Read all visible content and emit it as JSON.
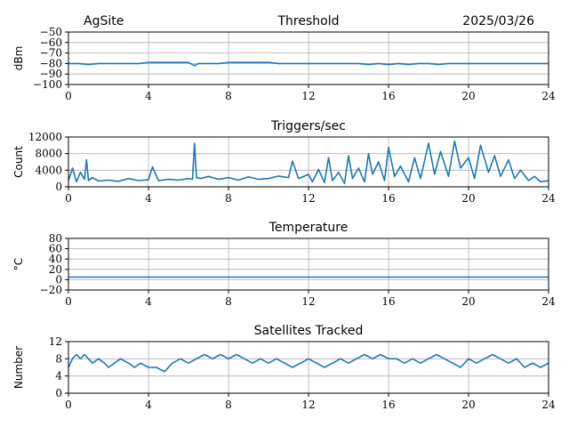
{
  "header": {
    "site": "AgSite",
    "date": "2025/03/26"
  },
  "colors": {
    "series": "#1f77b4",
    "grid": "#b0b0b0"
  },
  "chart_data": [
    {
      "type": "line",
      "title": "Threshold",
      "ylabel": "dBm",
      "xlim": [
        0,
        24
      ],
      "ylim": [
        -100,
        -50
      ],
      "xticks": [
        0,
        4,
        8,
        12,
        16,
        20,
        24
      ],
      "yticks": [
        -50,
        -60,
        -70,
        -80,
        -90,
        -100
      ],
      "grid": true,
      "series": [
        {
          "x": [
            0,
            0.5,
            1,
            1.5,
            2,
            2.5,
            3,
            3.5,
            4,
            4.5,
            5,
            5.5,
            6,
            6.3,
            6.5,
            7,
            7.5,
            8,
            8.5,
            9,
            9.5,
            10,
            10.5,
            11,
            11.5,
            12,
            12.5,
            13,
            13.5,
            14,
            14.5,
            15,
            15.5,
            16,
            16.5,
            17,
            17.5,
            18,
            18.5,
            19,
            19.5,
            20,
            20.5,
            21,
            21.5,
            22,
            22.5,
            23,
            23.5,
            24
          ],
          "values": [
            -80,
            -80,
            -81,
            -80,
            -80,
            -80,
            -80,
            -80,
            -79,
            -79,
            -79,
            -79,
            -79,
            -82,
            -80,
            -80,
            -80,
            -79,
            -79,
            -79,
            -79,
            -79,
            -80,
            -80,
            -80,
            -80,
            -80,
            -80,
            -80,
            -80,
            -80,
            -81,
            -80,
            -81,
            -80,
            -81,
            -80,
            -80,
            -81,
            -80,
            -80,
            -80,
            -80,
            -80,
            -80,
            -80,
            -80,
            -80,
            -80,
            -80
          ]
        }
      ]
    },
    {
      "type": "line",
      "title": "Triggers/sec",
      "ylabel": "Count",
      "xlim": [
        0,
        24
      ],
      "ylim": [
        0,
        12000
      ],
      "xticks": [
        0,
        4,
        8,
        12,
        16,
        20,
        24
      ],
      "yticks": [
        0,
        4000,
        8000,
        12000
      ],
      "grid": true,
      "series": [
        {
          "x": [
            0,
            0.2,
            0.4,
            0.6,
            0.8,
            0.9,
            1.0,
            1.2,
            1.5,
            2,
            2.5,
            3,
            3.5,
            4,
            4.2,
            4.5,
            5,
            5.5,
            6,
            6.2,
            6.3,
            6.4,
            6.6,
            7,
            7.5,
            8,
            8.5,
            9,
            9.5,
            10,
            10.5,
            11,
            11.2,
            11.5,
            12,
            12.2,
            12.5,
            12.8,
            13,
            13.2,
            13.5,
            13.8,
            14,
            14.2,
            14.5,
            14.8,
            15,
            15.2,
            15.5,
            15.8,
            16,
            16.3,
            16.6,
            17,
            17.3,
            17.6,
            18,
            18.3,
            18.6,
            19,
            19.3,
            19.6,
            20,
            20.3,
            20.6,
            21,
            21.3,
            21.6,
            22,
            22.3,
            22.6,
            23,
            23.3,
            23.6,
            24
          ],
          "values": [
            1500,
            4500,
            1200,
            3500,
            1800,
            6500,
            1500,
            2200,
            1400,
            1600,
            1300,
            2000,
            1500,
            1700,
            4800,
            1500,
            1800,
            1600,
            2000,
            1800,
            10500,
            2200,
            2000,
            2500,
            1800,
            2200,
            1600,
            2400,
            1800,
            2000,
            2600,
            2200,
            6200,
            2000,
            3000,
            1200,
            4200,
            1000,
            7000,
            1500,
            3500,
            800,
            7500,
            2000,
            4500,
            1200,
            8000,
            3000,
            6000,
            1500,
            9500,
            2500,
            5000,
            1200,
            7000,
            2000,
            10500,
            3000,
            8500,
            2500,
            11000,
            4500,
            7000,
            2000,
            10000,
            3500,
            7500,
            2500,
            6500,
            2000,
            4000,
            1500,
            2500,
            1200,
            1500
          ]
        }
      ]
    },
    {
      "type": "line",
      "title": "Temperature",
      "ylabel": "°C",
      "xlim": [
        0,
        24
      ],
      "ylim": [
        -20,
        80
      ],
      "xticks": [
        0,
        4,
        8,
        12,
        16,
        20,
        24
      ],
      "yticks": [
        -20,
        0,
        20,
        40,
        60,
        80
      ],
      "grid": true,
      "series": [
        {
          "x": [
            0,
            24
          ],
          "values": [
            5,
            5
          ]
        }
      ]
    },
    {
      "type": "line",
      "title": "Satellites Tracked",
      "ylabel": "Number",
      "xlim": [
        0,
        24
      ],
      "ylim": [
        0,
        12
      ],
      "xticks": [
        0,
        4,
        8,
        12,
        16,
        20,
        24
      ],
      "yticks": [
        0,
        4,
        8,
        12
      ],
      "grid": true,
      "series": [
        {
          "x": [
            0,
            0.2,
            0.4,
            0.6,
            0.8,
            1.0,
            1.2,
            1.5,
            1.8,
            2.0,
            2.3,
            2.6,
            3.0,
            3.3,
            3.6,
            4.0,
            4.4,
            4.8,
            5.2,
            5.6,
            6.0,
            6.4,
            6.8,
            7.2,
            7.6,
            8.0,
            8.4,
            8.8,
            9.2,
            9.6,
            10.0,
            10.4,
            10.8,
            11.2,
            11.6,
            12.0,
            12.4,
            12.8,
            13.2,
            13.6,
            14.0,
            14.4,
            14.8,
            15.2,
            15.6,
            16.0,
            16.4,
            16.8,
            17.2,
            17.6,
            18.0,
            18.4,
            18.8,
            19.2,
            19.6,
            20.0,
            20.4,
            20.8,
            21.2,
            21.6,
            22.0,
            22.4,
            22.8,
            23.2,
            23.6,
            24
          ],
          "values": [
            6,
            8,
            9,
            8,
            9,
            8,
            7,
            8,
            7,
            6,
            7,
            8,
            7,
            6,
            7,
            6,
            6,
            5,
            7,
            8,
            7,
            8,
            9,
            8,
            9,
            8,
            9,
            8,
            7,
            8,
            7,
            8,
            7,
            6,
            7,
            8,
            7,
            6,
            7,
            8,
            7,
            8,
            9,
            8,
            9,
            8,
            8,
            7,
            8,
            7,
            8,
            9,
            8,
            7,
            6,
            8,
            7,
            8,
            9,
            8,
            7,
            8,
            6,
            7,
            6,
            7
          ]
        }
      ]
    }
  ]
}
